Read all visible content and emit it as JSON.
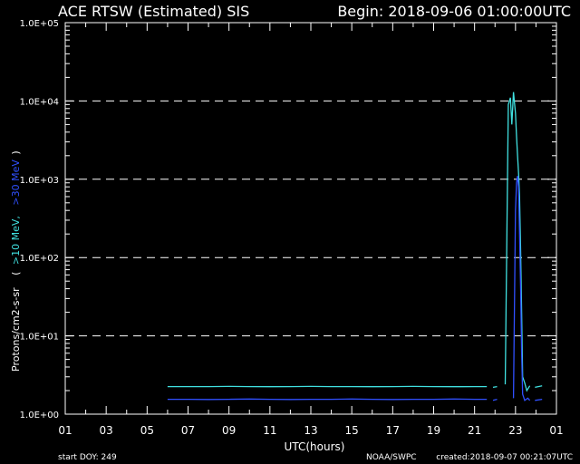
{
  "chart_data": {
    "type": "line",
    "title_left": "ACE RTSW (Estimated) SIS",
    "title_right": "Begin: 2018-09-06 01:00:00UTC",
    "xlabel": "UTC(hours)",
    "ylabel_parts": {
      "units": "Protons/cm2-s-sr",
      "open": "(",
      "series1": ">10 MeV,",
      "series2": ">30 MeV",
      "close": ")"
    },
    "footer": {
      "left": "start DOY:  249",
      "middle": "NOAA/SWPC",
      "right": "created:2018-09-07 00:21:07UTC"
    },
    "y_scale": "log",
    "ylim": [
      1,
      100000
    ],
    "yticks": [
      "1.0E+00",
      "1.0E+01",
      "1.0E+02",
      "1.0E+03",
      "1.0E+04",
      "1.0E+05"
    ],
    "grid_lines_at": [
      10,
      100,
      1000,
      10000
    ],
    "xlim": [
      1,
      25
    ],
    "xtick_labels": [
      "01",
      "03",
      "05",
      "07",
      "09",
      "11",
      "13",
      "15",
      "17",
      "19",
      "21",
      "23",
      "01"
    ],
    "colors": {
      "series1": "#40e0e0",
      "series2": "#3050ff",
      "axes": "#ffffff",
      "background": "#000000"
    },
    "series": [
      {
        "name": ">10 MeV",
        "color": "#40e0e0",
        "points": [
          [
            6.0,
            2.25
          ],
          [
            7.0,
            2.25
          ],
          [
            8.0,
            2.25
          ],
          [
            9.0,
            2.26
          ],
          [
            10.0,
            2.25
          ],
          [
            11.0,
            2.24
          ],
          [
            12.0,
            2.25
          ],
          [
            13.0,
            2.26
          ],
          [
            14.0,
            2.25
          ],
          [
            15.0,
            2.25
          ],
          [
            16.0,
            2.24
          ],
          [
            17.0,
            2.25
          ],
          [
            18.0,
            2.26
          ],
          [
            19.0,
            2.25
          ],
          [
            20.0,
            2.24
          ],
          [
            21.0,
            2.25
          ],
          [
            21.6,
            2.25
          ],
          [
            21.8,
            null
          ],
          [
            21.9,
            2.2
          ],
          [
            22.1,
            2.25
          ],
          [
            22.3,
            null
          ],
          [
            22.5,
            2.4
          ],
          [
            22.65,
            9000
          ],
          [
            22.75,
            11000
          ],
          [
            22.82,
            5000
          ],
          [
            22.9,
            13000
          ],
          [
            23.0,
            7000
          ],
          [
            23.05,
            3500
          ],
          [
            23.1,
            2000
          ],
          [
            23.15,
            1200
          ],
          [
            23.2,
            600
          ],
          [
            23.25,
            120
          ],
          [
            23.3,
            20
          ],
          [
            23.35,
            3.0
          ],
          [
            23.45,
            2.5
          ],
          [
            23.55,
            2.0
          ],
          [
            23.7,
            2.3
          ],
          [
            23.8,
            null
          ],
          [
            23.95,
            2.2
          ],
          [
            24.3,
            2.3
          ]
        ]
      },
      {
        "name": ">30 MeV",
        "color": "#3050ff",
        "points": [
          [
            6.0,
            1.55
          ],
          [
            7.0,
            1.55
          ],
          [
            8.0,
            1.54
          ],
          [
            9.0,
            1.55
          ],
          [
            10.0,
            1.56
          ],
          [
            11.0,
            1.55
          ],
          [
            12.0,
            1.54
          ],
          [
            13.0,
            1.55
          ],
          [
            14.0,
            1.55
          ],
          [
            15.0,
            1.56
          ],
          [
            16.0,
            1.55
          ],
          [
            17.0,
            1.54
          ],
          [
            18.0,
            1.55
          ],
          [
            19.0,
            1.55
          ],
          [
            20.0,
            1.56
          ],
          [
            21.0,
            1.55
          ],
          [
            21.6,
            1.55
          ],
          [
            21.8,
            null
          ],
          [
            21.9,
            1.5
          ],
          [
            22.1,
            1.55
          ],
          [
            22.3,
            null
          ],
          [
            22.9,
            1.6
          ],
          [
            23.0,
            400
          ],
          [
            23.05,
            900
          ],
          [
            23.1,
            1100
          ],
          [
            23.15,
            800
          ],
          [
            23.2,
            200
          ],
          [
            23.25,
            40
          ],
          [
            23.3,
            6
          ],
          [
            23.35,
            1.8
          ],
          [
            23.45,
            1.5
          ],
          [
            23.6,
            1.6
          ],
          [
            23.7,
            1.5
          ],
          [
            23.8,
            null
          ],
          [
            23.95,
            1.5
          ],
          [
            24.3,
            1.55
          ]
        ]
      }
    ]
  }
}
